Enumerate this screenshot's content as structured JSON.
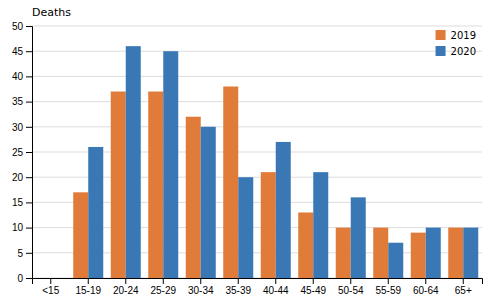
{
  "chart_data": {
    "type": "bar",
    "ylabel": "Deaths",
    "categories": [
      "<15",
      "15-19",
      "20-24",
      "25-29",
      "30-34",
      "35-39",
      "40-44",
      "45-49",
      "50-54",
      "55-59",
      "60-64",
      "65+"
    ],
    "series": [
      {
        "name": "2019",
        "color": "#E07B39",
        "values": [
          0,
          17,
          37,
          37,
          32,
          38,
          21,
          13,
          10,
          10,
          9,
          10
        ]
      },
      {
        "name": "2020",
        "color": "#3A78B5",
        "values": [
          0,
          26,
          46,
          45,
          30,
          20,
          27,
          21,
          16,
          7,
          10,
          10
        ]
      }
    ],
    "ylim": [
      0,
      50
    ],
    "yticks": [
      0,
      5,
      10,
      15,
      20,
      25,
      30,
      35,
      40,
      45,
      50
    ],
    "grid": true,
    "legend": "upper right"
  }
}
